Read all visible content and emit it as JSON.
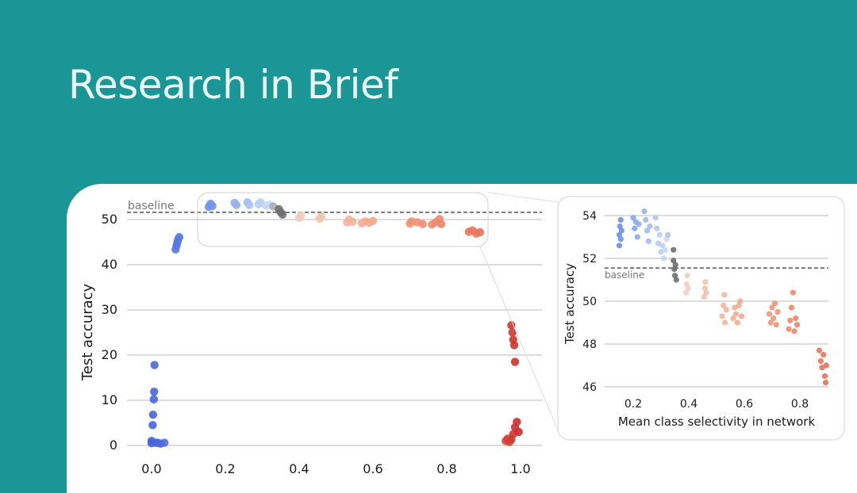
{
  "page": {
    "title": "Research in Brief"
  },
  "colors": {
    "background": "#1b9696",
    "title": "#eaf6f3",
    "baseline_dot": "#6e6e6e"
  },
  "chart_data": [
    {
      "type": "scatter",
      "title": "",
      "xlabel": "",
      "ylabel": "Test accuracy",
      "xlim": [
        -0.05,
        1.05
      ],
      "ylim": [
        0,
        53
      ],
      "xticks": [
        "0.0",
        "0.2",
        "0.4",
        "0.6",
        "0.8",
        "1.0"
      ],
      "yticks": [
        "0",
        "10",
        "20",
        "30",
        "40",
        "50"
      ],
      "baseline": {
        "label": "baseline",
        "value": 51.6
      },
      "grid": "horizontal",
      "points": [
        {
          "x": 0.0,
          "y": 0.5
        },
        {
          "x": 0.0,
          "y": 1.0
        },
        {
          "x": 0.003,
          "y": 4.5
        },
        {
          "x": 0.004,
          "y": 6.8
        },
        {
          "x": 0.006,
          "y": 10.2
        },
        {
          "x": 0.007,
          "y": 11.9
        },
        {
          "x": 0.008,
          "y": 17.8
        },
        {
          "x": 0.01,
          "y": 0.6
        },
        {
          "x": 0.015,
          "y": 0.6
        },
        {
          "x": 0.02,
          "y": 0.5
        },
        {
          "x": 0.025,
          "y": 0.4
        },
        {
          "x": 0.035,
          "y": 0.6
        },
        {
          "x": 0.065,
          "y": 43.4
        },
        {
          "x": 0.068,
          "y": 44.3
        },
        {
          "x": 0.07,
          "y": 45.0
        },
        {
          "x": 0.072,
          "y": 45.6
        },
        {
          "x": 0.075,
          "y": 46.1
        },
        {
          "x": 0.155,
          "y": 52.8
        },
        {
          "x": 0.16,
          "y": 53.5
        },
        {
          "x": 0.165,
          "y": 53.0
        },
        {
          "x": 0.225,
          "y": 53.7
        },
        {
          "x": 0.23,
          "y": 53.2
        },
        {
          "x": 0.26,
          "y": 53.8
        },
        {
          "x": 0.265,
          "y": 53.2
        },
        {
          "x": 0.29,
          "y": 53.4
        },
        {
          "x": 0.295,
          "y": 53.8
        },
        {
          "x": 0.31,
          "y": 53.1
        },
        {
          "x": 0.32,
          "y": 53.3
        },
        {
          "x": 0.33,
          "y": 52.9
        },
        {
          "x": 0.345,
          "y": 52.3
        },
        {
          "x": 0.35,
          "y": 51.6
        },
        {
          "x": 0.355,
          "y": 51.1
        },
        {
          "x": 0.4,
          "y": 50.4
        },
        {
          "x": 0.405,
          "y": 50.9
        },
        {
          "x": 0.455,
          "y": 50.2
        },
        {
          "x": 0.46,
          "y": 50.6
        },
        {
          "x": 0.53,
          "y": 49.4
        },
        {
          "x": 0.535,
          "y": 50.0
        },
        {
          "x": 0.545,
          "y": 49.5
        },
        {
          "x": 0.57,
          "y": 49.2
        },
        {
          "x": 0.58,
          "y": 49.6
        },
        {
          "x": 0.59,
          "y": 49.3
        },
        {
          "x": 0.6,
          "y": 49.7
        },
        {
          "x": 0.7,
          "y": 49.1
        },
        {
          "x": 0.705,
          "y": 49.6
        },
        {
          "x": 0.72,
          "y": 49.4
        },
        {
          "x": 0.735,
          "y": 49.0
        },
        {
          "x": 0.76,
          "y": 48.9
        },
        {
          "x": 0.77,
          "y": 49.4
        },
        {
          "x": 0.78,
          "y": 50.1
        },
        {
          "x": 0.785,
          "y": 49.0
        },
        {
          "x": 0.86,
          "y": 47.3
        },
        {
          "x": 0.87,
          "y": 47.6
        },
        {
          "x": 0.88,
          "y": 46.9
        },
        {
          "x": 0.89,
          "y": 47.2
        },
        {
          "x": 0.96,
          "y": 1.0
        },
        {
          "x": 0.965,
          "y": 1.5
        },
        {
          "x": 0.97,
          "y": 0.8
        },
        {
          "x": 0.975,
          "y": 1.3
        },
        {
          "x": 0.98,
          "y": 2.5
        },
        {
          "x": 0.985,
          "y": 4.0
        },
        {
          "x": 0.99,
          "y": 5.2
        },
        {
          "x": 0.995,
          "y": 3.0
        },
        {
          "x": 0.975,
          "y": 26.6
        },
        {
          "x": 0.978,
          "y": 25.0
        },
        {
          "x": 0.98,
          "y": 23.4
        },
        {
          "x": 0.983,
          "y": 22.2
        },
        {
          "x": 0.985,
          "y": 18.5
        }
      ]
    },
    {
      "type": "scatter",
      "title": "",
      "xlabel": "Mean class selectivity in network",
      "ylabel": "Test accuracy",
      "xlim": [
        0.12,
        0.93
      ],
      "ylim": [
        45.8,
        54.4
      ],
      "xticks": [
        "0.2",
        "0.4",
        "0.6",
        "0.8"
      ],
      "yticks": [
        "46",
        "48",
        "50",
        "52",
        "54"
      ],
      "baseline": {
        "label": "baseline",
        "value": 51.55
      },
      "grid": "horizontal",
      "points": [
        {
          "x": 0.15,
          "y": 52.6
        },
        {
          "x": 0.15,
          "y": 53.1
        },
        {
          "x": 0.152,
          "y": 53.5
        },
        {
          "x": 0.155,
          "y": 53.8
        },
        {
          "x": 0.155,
          "y": 52.9
        },
        {
          "x": 0.158,
          "y": 53.3
        },
        {
          "x": 0.2,
          "y": 53.9
        },
        {
          "x": 0.205,
          "y": 53.4
        },
        {
          "x": 0.21,
          "y": 53.7
        },
        {
          "x": 0.215,
          "y": 53.0
        },
        {
          "x": 0.22,
          "y": 53.6
        },
        {
          "x": 0.24,
          "y": 54.2
        },
        {
          "x": 0.245,
          "y": 53.8
        },
        {
          "x": 0.25,
          "y": 53.3
        },
        {
          "x": 0.255,
          "y": 52.8
        },
        {
          "x": 0.26,
          "y": 53.5
        },
        {
          "x": 0.28,
          "y": 53.9
        },
        {
          "x": 0.285,
          "y": 53.4
        },
        {
          "x": 0.29,
          "y": 52.7
        },
        {
          "x": 0.295,
          "y": 53.1
        },
        {
          "x": 0.3,
          "y": 52.3
        },
        {
          "x": 0.305,
          "y": 52.6
        },
        {
          "x": 0.31,
          "y": 52.0
        },
        {
          "x": 0.315,
          "y": 52.4
        },
        {
          "x": 0.32,
          "y": 52.9
        },
        {
          "x": 0.325,
          "y": 53.1
        },
        {
          "x": 0.345,
          "y": 52.4
        },
        {
          "x": 0.345,
          "y": 51.9
        },
        {
          "x": 0.348,
          "y": 51.5
        },
        {
          "x": 0.35,
          "y": 51.2
        },
        {
          "x": 0.352,
          "y": 51.7
        },
        {
          "x": 0.355,
          "y": 51.0
        },
        {
          "x": 0.39,
          "y": 50.4
        },
        {
          "x": 0.392,
          "y": 50.8
        },
        {
          "x": 0.395,
          "y": 51.2
        },
        {
          "x": 0.398,
          "y": 50.6
        },
        {
          "x": 0.455,
          "y": 50.2
        },
        {
          "x": 0.458,
          "y": 50.6
        },
        {
          "x": 0.46,
          "y": 50.9
        },
        {
          "x": 0.463,
          "y": 50.4
        },
        {
          "x": 0.52,
          "y": 49.3
        },
        {
          "x": 0.525,
          "y": 49.8
        },
        {
          "x": 0.528,
          "y": 50.3
        },
        {
          "x": 0.53,
          "y": 49.0
        },
        {
          "x": 0.535,
          "y": 49.6
        },
        {
          "x": 0.56,
          "y": 49.2
        },
        {
          "x": 0.565,
          "y": 49.7
        },
        {
          "x": 0.57,
          "y": 49.4
        },
        {
          "x": 0.575,
          "y": 49.0
        },
        {
          "x": 0.58,
          "y": 49.8
        },
        {
          "x": 0.585,
          "y": 50.0
        },
        {
          "x": 0.59,
          "y": 49.3
        },
        {
          "x": 0.69,
          "y": 49.4
        },
        {
          "x": 0.695,
          "y": 49.0
        },
        {
          "x": 0.7,
          "y": 49.7
        },
        {
          "x": 0.705,
          "y": 49.2
        },
        {
          "x": 0.71,
          "y": 49.9
        },
        {
          "x": 0.715,
          "y": 48.9
        },
        {
          "x": 0.72,
          "y": 49.5
        },
        {
          "x": 0.76,
          "y": 48.7
        },
        {
          "x": 0.765,
          "y": 49.1
        },
        {
          "x": 0.77,
          "y": 49.7
        },
        {
          "x": 0.775,
          "y": 50.4
        },
        {
          "x": 0.78,
          "y": 48.6
        },
        {
          "x": 0.785,
          "y": 49.2
        },
        {
          "x": 0.79,
          "y": 48.9
        },
        {
          "x": 0.87,
          "y": 47.7
        },
        {
          "x": 0.875,
          "y": 47.2
        },
        {
          "x": 0.88,
          "y": 46.9
        },
        {
          "x": 0.885,
          "y": 47.5
        },
        {
          "x": 0.89,
          "y": 46.5
        },
        {
          "x": 0.893,
          "y": 46.2
        },
        {
          "x": 0.895,
          "y": 47.0
        }
      ]
    }
  ]
}
